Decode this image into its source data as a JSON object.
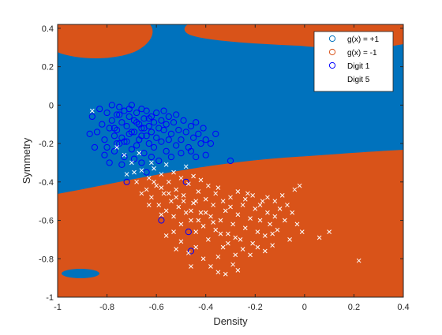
{
  "chart_data": {
    "type": "scatter",
    "title": "",
    "xlabel": "Density",
    "ylabel": "Symmetry",
    "xlim": [
      -1,
      0.4
    ],
    "ylim": [
      -1,
      0.42
    ],
    "xticks": [
      "-1",
      "-0.8",
      "-0.6",
      "-0.4",
      "-0.2",
      "0",
      "0.2",
      "0.4"
    ],
    "yticks": [
      "-1",
      "-0.8",
      "-0.6",
      "-0.4",
      "-0.2",
      "0",
      "0.2",
      "0.4"
    ],
    "xtick_values": [
      -1,
      -0.8,
      -0.6,
      -0.4,
      -0.2,
      0,
      0.2,
      0.4
    ],
    "ytick_values": [
      -1,
      -0.8,
      -0.6,
      -0.4,
      -0.2,
      0,
      0.2,
      0.4
    ],
    "grid": false,
    "legend_position": "top-right",
    "legend": [
      {
        "label": "g(x) = +1",
        "marker": "circle",
        "color": "#0072BD"
      },
      {
        "label": "g(x) = -1",
        "marker": "circle",
        "color": "#D95319"
      },
      {
        "label": "Digit 1",
        "marker": "circle",
        "color": "#0000FF"
      },
      {
        "label": "Digit 5",
        "marker": "x",
        "color": "#FFFFFF"
      }
    ],
    "background_regions": [
      {
        "name": "g(x) = +1",
        "color": "#0072BD"
      },
      {
        "name": "g(x) = -1",
        "color": "#D95319"
      }
    ],
    "series": [
      {
        "name": "Digit 1",
        "marker": "circle",
        "color": "#0000FF",
        "points": [
          [
            -0.86,
            -0.06
          ],
          [
            -0.84,
            -0.14
          ],
          [
            -0.83,
            -0.02
          ],
          [
            -0.82,
            -0.1
          ],
          [
            -0.81,
            -0.18
          ],
          [
            -0.8,
            -0.04
          ],
          [
            -0.8,
            -0.22
          ],
          [
            -0.79,
            -0.12
          ],
          [
            -0.78,
            0.0
          ],
          [
            -0.78,
            -0.08
          ],
          [
            -0.77,
            -0.16
          ],
          [
            -0.77,
            -0.24
          ],
          [
            -0.76,
            -0.05
          ],
          [
            -0.76,
            -0.13
          ],
          [
            -0.75,
            -0.2
          ],
          [
            -0.75,
            -0.01
          ],
          [
            -0.74,
            -0.09
          ],
          [
            -0.74,
            -0.17
          ],
          [
            -0.73,
            -0.03
          ],
          [
            -0.73,
            -0.27
          ],
          [
            -0.72,
            -0.11
          ],
          [
            -0.72,
            -0.19
          ],
          [
            -0.71,
            -0.06
          ],
          [
            -0.71,
            -0.15
          ],
          [
            -0.7,
            -0.23
          ],
          [
            -0.7,
            0.0
          ],
          [
            -0.69,
            -0.08
          ],
          [
            -0.69,
            -0.14
          ],
          [
            -0.68,
            -0.21
          ],
          [
            -0.68,
            -0.04
          ],
          [
            -0.67,
            -0.1
          ],
          [
            -0.67,
            -0.18
          ],
          [
            -0.66,
            -0.02
          ],
          [
            -0.66,
            -0.12
          ],
          [
            -0.65,
            -0.25
          ],
          [
            -0.65,
            -0.07
          ],
          [
            -0.64,
            -0.16
          ],
          [
            -0.64,
            -0.03
          ],
          [
            -0.63,
            -0.11
          ],
          [
            -0.63,
            -0.2
          ],
          [
            -0.62,
            -0.06
          ],
          [
            -0.62,
            -0.14
          ],
          [
            -0.61,
            -0.09
          ],
          [
            -0.61,
            -0.22
          ],
          [
            -0.6,
            -0.04
          ],
          [
            -0.6,
            -0.17
          ],
          [
            -0.59,
            -0.12
          ],
          [
            -0.58,
            -0.08
          ],
          [
            -0.58,
            -0.19
          ],
          [
            -0.57,
            -0.03
          ],
          [
            -0.57,
            -0.13
          ],
          [
            -0.56,
            -0.1
          ],
          [
            -0.55,
            -0.18
          ],
          [
            -0.55,
            -0.06
          ],
          [
            -0.54,
            -0.15
          ],
          [
            -0.53,
            -0.09
          ],
          [
            -0.52,
            -0.21
          ],
          [
            -0.52,
            -0.05
          ],
          [
            -0.51,
            -0.13
          ],
          [
            -0.5,
            -0.18
          ],
          [
            -0.49,
            -0.08
          ],
          [
            -0.48,
            -0.14
          ],
          [
            -0.47,
            -0.22
          ],
          [
            -0.46,
            -0.11
          ],
          [
            -0.45,
            -0.17
          ],
          [
            -0.44,
            -0.09
          ],
          [
            -0.43,
            -0.15
          ],
          [
            -0.42,
            -0.2
          ],
          [
            -0.41,
            -0.12
          ],
          [
            -0.4,
            -0.18
          ],
          [
            -0.87,
            -0.15
          ],
          [
            -0.85,
            -0.22
          ],
          [
            -0.81,
            -0.26
          ],
          [
            -0.79,
            -0.3
          ],
          [
            -0.74,
            -0.31
          ],
          [
            -0.69,
            -0.28
          ],
          [
            -0.66,
            -0.3
          ],
          [
            -0.62,
            -0.27
          ],
          [
            -0.59,
            -0.29
          ],
          [
            -0.56,
            -0.24
          ],
          [
            -0.54,
            -0.27
          ],
          [
            -0.5,
            -0.25
          ],
          [
            -0.46,
            -0.24
          ],
          [
            -0.44,
            -0.27
          ],
          [
            -0.4,
            -0.26
          ],
          [
            -0.38,
            -0.2
          ],
          [
            -0.36,
            -0.15
          ],
          [
            -0.3,
            -0.29
          ],
          [
            -0.72,
            -0.4
          ],
          [
            -0.64,
            -0.35
          ],
          [
            -0.48,
            -0.4
          ],
          [
            -0.58,
            -0.6
          ],
          [
            -0.47,
            -0.66
          ],
          [
            -0.46,
            -0.76
          ],
          [
            -0.75,
            -0.05
          ],
          [
            -0.7,
            -0.14
          ],
          [
            -0.77,
            -0.12
          ],
          [
            -0.68,
            -0.09
          ],
          [
            -0.73,
            -0.19
          ],
          [
            -0.66,
            -0.16
          ],
          [
            -0.71,
            -0.02
          ],
          [
            -0.63,
            -0.07
          ],
          [
            -0.76,
            -0.2
          ],
          [
            -0.65,
            -0.12
          ]
        ]
      },
      {
        "name": "Digit 5",
        "marker": "x",
        "color": "#FFFFFF",
        "points": [
          [
            -0.86,
            -0.03
          ],
          [
            -0.76,
            -0.22
          ],
          [
            -0.72,
            -0.36
          ],
          [
            -0.7,
            -0.3
          ],
          [
            -0.68,
            -0.4
          ],
          [
            -0.66,
            -0.34
          ],
          [
            -0.64,
            -0.44
          ],
          [
            -0.63,
            -0.38
          ],
          [
            -0.62,
            -0.48
          ],
          [
            -0.6,
            -0.42
          ],
          [
            -0.59,
            -0.52
          ],
          [
            -0.58,
            -0.36
          ],
          [
            -0.57,
            -0.46
          ],
          [
            -0.56,
            -0.55
          ],
          [
            -0.55,
            -0.4
          ],
          [
            -0.54,
            -0.5
          ],
          [
            -0.53,
            -0.58
          ],
          [
            -0.52,
            -0.44
          ],
          [
            -0.51,
            -0.53
          ],
          [
            -0.5,
            -0.62
          ],
          [
            -0.49,
            -0.47
          ],
          [
            -0.48,
            -0.56
          ],
          [
            -0.47,
            -0.41
          ],
          [
            -0.46,
            -0.6
          ],
          [
            -0.45,
            -0.51
          ],
          [
            -0.44,
            -0.66
          ],
          [
            -0.43,
            -0.45
          ],
          [
            -0.42,
            -0.56
          ],
          [
            -0.41,
            -0.63
          ],
          [
            -0.4,
            -0.49
          ],
          [
            -0.39,
            -0.7
          ],
          [
            -0.38,
            -0.58
          ],
          [
            -0.37,
            -0.52
          ],
          [
            -0.36,
            -0.65
          ],
          [
            -0.35,
            -0.43
          ],
          [
            -0.34,
            -0.6
          ],
          [
            -0.33,
            -0.74
          ],
          [
            -0.32,
            -0.55
          ],
          [
            -0.31,
            -0.67
          ],
          [
            -0.3,
            -0.48
          ],
          [
            -0.29,
            -0.62
          ],
          [
            -0.28,
            -0.78
          ],
          [
            -0.27,
            -0.57
          ],
          [
            -0.26,
            -0.7
          ],
          [
            -0.25,
            -0.52
          ],
          [
            -0.24,
            -0.64
          ],
          [
            -0.23,
            -0.46
          ],
          [
            -0.22,
            -0.59
          ],
          [
            -0.21,
            -0.72
          ],
          [
            -0.2,
            -0.54
          ],
          [
            -0.19,
            -0.66
          ],
          [
            -0.18,
            -0.6
          ],
          [
            -0.17,
            -0.5
          ],
          [
            -0.16,
            -0.68
          ],
          [
            -0.15,
            -0.56
          ],
          [
            -0.14,
            -0.62
          ],
          [
            -0.13,
            -0.73
          ],
          [
            -0.12,
            -0.58
          ],
          [
            -0.11,
            -0.65
          ],
          [
            -0.1,
            -0.54
          ],
          [
            -0.08,
            -0.6
          ],
          [
            -0.06,
            -0.7
          ],
          [
            -0.04,
            -0.44
          ],
          [
            -0.02,
            -0.42
          ],
          [
            0.06,
            -0.69
          ],
          [
            0.1,
            -0.66
          ],
          [
            0.22,
            -0.81
          ],
          [
            -0.61,
            -0.33
          ],
          [
            -0.58,
            -0.57
          ],
          [
            -0.53,
            -0.66
          ],
          [
            -0.5,
            -0.71
          ],
          [
            -0.47,
            -0.77
          ],
          [
            -0.44,
            -0.74
          ],
          [
            -0.41,
            -0.8
          ],
          [
            -0.38,
            -0.84
          ],
          [
            -0.35,
            -0.87
          ],
          [
            -0.32,
            -0.88
          ],
          [
            -0.29,
            -0.83
          ],
          [
            -0.27,
            -0.86
          ],
          [
            -0.35,
            -0.79
          ],
          [
            -0.46,
            -0.84
          ],
          [
            -0.52,
            -0.75
          ],
          [
            -0.56,
            -0.68
          ],
          [
            -0.63,
            -0.52
          ],
          [
            -0.66,
            -0.46
          ],
          [
            -0.69,
            -0.35
          ],
          [
            -0.73,
            -0.26
          ],
          [
            -0.67,
            -0.25
          ],
          [
            -0.62,
            -0.3
          ],
          [
            -0.56,
            -0.31
          ],
          [
            -0.53,
            -0.35
          ],
          [
            -0.5,
            -0.38
          ],
          [
            -0.48,
            -0.32
          ],
          [
            -0.45,
            -0.37
          ],
          [
            -0.42,
            -0.39
          ],
          [
            -0.39,
            -0.42
          ],
          [
            -0.36,
            -0.46
          ],
          [
            -0.33,
            -0.5
          ],
          [
            -0.3,
            -0.53
          ],
          [
            -0.27,
            -0.45
          ],
          [
            -0.24,
            -0.49
          ],
          [
            -0.21,
            -0.47
          ],
          [
            -0.18,
            -0.52
          ],
          [
            -0.15,
            -0.48
          ],
          [
            -0.12,
            -0.5
          ],
          [
            -0.09,
            -0.47
          ],
          [
            -0.07,
            -0.52
          ],
          [
            -0.05,
            -0.56
          ],
          [
            -0.03,
            -0.62
          ],
          [
            -0.01,
            -0.66
          ],
          [
            -0.4,
            -0.56
          ],
          [
            -0.37,
            -0.61
          ],
          [
            -0.34,
            -0.67
          ],
          [
            -0.31,
            -0.72
          ],
          [
            -0.28,
            -0.69
          ],
          [
            -0.25,
            -0.75
          ],
          [
            -0.22,
            -0.78
          ],
          [
            -0.19,
            -0.74
          ],
          [
            -0.16,
            -0.76
          ],
          [
            -0.13,
            -0.67
          ],
          [
            -0.43,
            -0.6
          ],
          [
            -0.46,
            -0.55
          ],
          [
            -0.49,
            -0.5
          ],
          [
            -0.52,
            -0.48
          ],
          [
            -0.55,
            -0.46
          ],
          [
            -0.58,
            -0.43
          ],
          [
            -0.61,
            -0.4
          ],
          [
            -0.44,
            -0.5
          ]
        ]
      }
    ]
  }
}
